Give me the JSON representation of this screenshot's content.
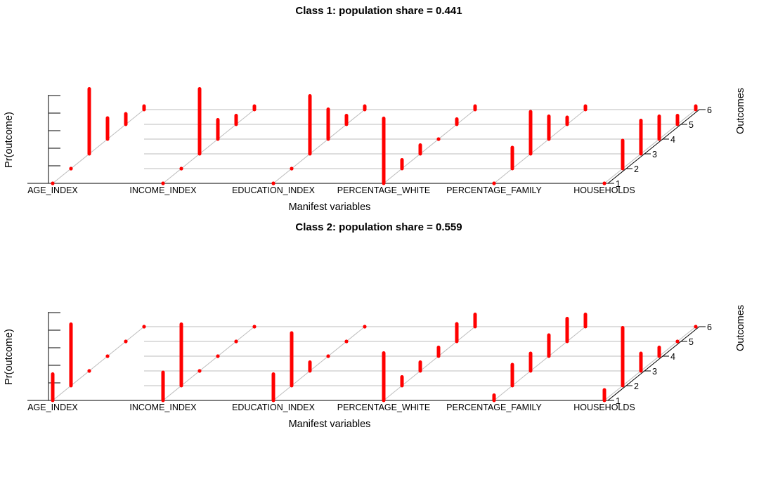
{
  "chart_data": [
    {
      "type": "bar",
      "title": "Class 1: population share = 0.441",
      "xlabel": "Manifest variables",
      "ylabel": "Pr(outcome)",
      "zlabel": "Outcomes",
      "categories": [
        "AGE_INDEX",
        "INCOME_INDEX",
        "EDUCATION_INDEX",
        "PERCENTAGE_WHITE",
        "PERCENTAGE_FAMILY",
        "HOUSEHOLDS"
      ],
      "outcomes": [
        "1",
        "2",
        "3",
        "4",
        "5",
        "6"
      ],
      "ylim": [
        0,
        0.5
      ],
      "grid": true,
      "bar_color": "#ff0000",
      "values": [
        [
          0.0,
          0.0,
          0.37,
          0.12,
          0.06,
          0.02
        ],
        [
          0.0,
          0.0,
          0.37,
          0.11,
          0.05,
          0.02
        ],
        [
          0.0,
          0.0,
          0.33,
          0.17,
          0.05,
          0.02
        ],
        [
          0.37,
          0.05,
          0.05,
          0.0,
          0.03,
          0.02
        ],
        [
          0.0,
          0.12,
          0.24,
          0.13,
          0.04,
          0.02
        ],
        [
          0.0,
          0.16,
          0.19,
          0.13,
          0.05,
          0.02
        ]
      ]
    },
    {
      "type": "bar",
      "title": "Class 2: population share = 0.559",
      "xlabel": "Manifest variables",
      "ylabel": "Pr(outcome)",
      "zlabel": "Outcomes",
      "categories": [
        "AGE_INDEX",
        "INCOME_INDEX",
        "EDUCATION_INDEX",
        "PERCENTAGE_WHITE",
        "PERCENTAGE_FAMILY",
        "HOUSEHOLDS"
      ],
      "outcomes": [
        "1",
        "2",
        "3",
        "4",
        "5",
        "6"
      ],
      "ylim": [
        0,
        0.5
      ],
      "grid": true,
      "bar_color": "#ff0000",
      "values": [
        [
          0.15,
          0.35,
          0.0,
          0.0,
          0.0,
          0.0
        ],
        [
          0.16,
          0.35,
          0.0,
          0.0,
          0.0,
          0.0
        ],
        [
          0.15,
          0.3,
          0.05,
          0.0,
          0.0,
          0.0
        ],
        [
          0.27,
          0.05,
          0.05,
          0.05,
          0.1,
          0.07
        ],
        [
          0.03,
          0.12,
          0.1,
          0.12,
          0.13,
          0.07
        ],
        [
          0.06,
          0.33,
          0.1,
          0.05,
          0.0,
          0.0
        ]
      ]
    }
  ]
}
